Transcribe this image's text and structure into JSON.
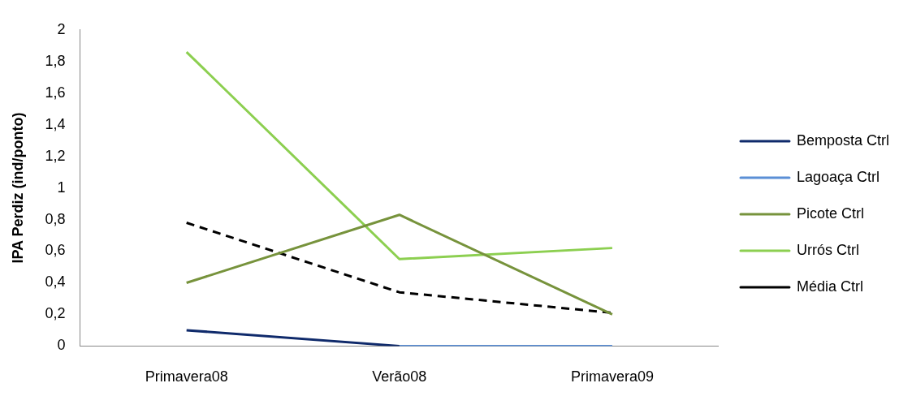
{
  "chart_data": {
    "type": "line",
    "ylabel": "IPA Perdiz (ind/ponto)",
    "categories": [
      "Primavera08",
      "Verão08",
      "Primavera09"
    ],
    "ylim": [
      0,
      2
    ],
    "yticks": [
      0,
      {
        "value": 0.2,
        "label": "0,2"
      },
      {
        "value": 0.4,
        "label": "0,4"
      },
      {
        "value": 0.6,
        "label": "0,6"
      },
      {
        "value": 0.8,
        "label": "0,8"
      },
      1,
      {
        "value": 1.2,
        "label": "1,2"
      },
      {
        "value": 1.4,
        "label": "1,4"
      },
      {
        "value": 1.6,
        "label": "1,6"
      },
      {
        "value": 1.8,
        "label": "1,8"
      },
      2
    ],
    "grid": false,
    "legend": "right",
    "marker": "none",
    "series": [
      {
        "name": "Bemposta Ctrl",
        "color": "#0f2a6b",
        "values": [
          0.1,
          0,
          null
        ]
      },
      {
        "name": "Lagoaça Ctrl",
        "color": "#5b8fd6",
        "values": [
          null,
          0,
          0
        ]
      },
      {
        "name": "Picote Ctrl",
        "color": "#77933c",
        "values": [
          0.4,
          0.83,
          0.2
        ]
      },
      {
        "name": "Urrós Ctrl",
        "color": "#8ccf50",
        "values": [
          1.86,
          0.55,
          0.62
        ]
      },
      {
        "name": "Média Ctrl",
        "color": "#000000",
        "values": [
          0.78,
          0.34,
          0.21
        ],
        "line_style": "dashed"
      }
    ]
  }
}
